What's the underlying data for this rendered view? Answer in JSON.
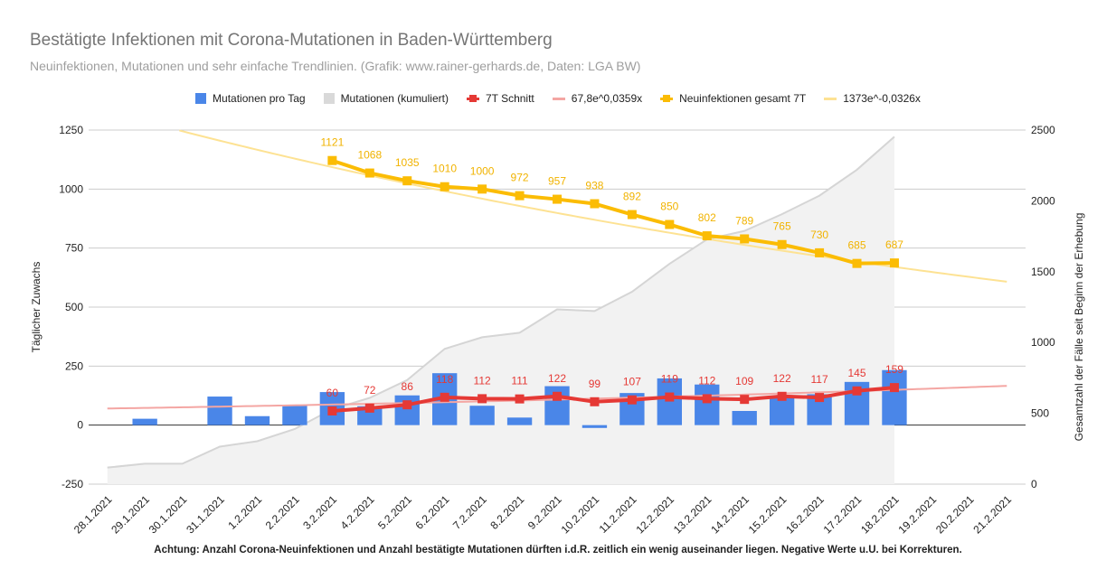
{
  "title": "Bestätigte Infektionen mit Corona-Mutationen in Baden-Württemberg",
  "subtitle": "Neuinfektionen, Mutationen und sehr einfache Trendlinien.  (Grafik: www.rainer-gerhards.de, Daten: LGA BW)",
  "footnote": "Achtung: Anzahl Corona-Neuinfektionen und Anzahl bestätigte Mutationen dürften i.d.R. zeitlich ein wenig auseinander liegen. Negative Werte u.U. bei Korrekturen.",
  "legend": [
    {
      "label": "Mutationen pro Tag",
      "color": "#4a86e8",
      "kind": "box"
    },
    {
      "label": "Mutationen (kumuliert)",
      "color": "#d9d9d9",
      "kind": "box"
    },
    {
      "label": "7T Schnitt",
      "color": "#e53935",
      "kind": "line-dot"
    },
    {
      "label": "67,8e^0,0359x",
      "color": "#f4a6a3",
      "kind": "line"
    },
    {
      "label": "Neuinfektionen gesamt 7T",
      "color": "#fbbc04",
      "kind": "line-dot"
    },
    {
      "label": "1373e^-0,0326x",
      "color": "#fde293",
      "kind": "line"
    }
  ],
  "chart_data": {
    "type": "bar",
    "categories": [
      "28.1.2021",
      "29.1.2021",
      "30.1.2021",
      "31.1.2021",
      "1.2.2021",
      "2.2.2021",
      "3.2.2021",
      "4.2.2021",
      "5.2.2021",
      "6.2.2021",
      "7.2.2021",
      "8.2.2021",
      "9.2.2021",
      "10.2.2021",
      "11.2.2021",
      "12.2.2021",
      "13.2.2021",
      "14.2.2021",
      "15.2.2021",
      "16.2.2021",
      "17.2.2021",
      "18.2.2021",
      "19.2.2021",
      "20.2.2021",
      "21.2.2021"
    ],
    "ylabel": "Täglicher Zuwachs",
    "y2label": "Gesamtzahl der Fälle seit Beginn der Erhebung",
    "ylim": [
      -250,
      1250
    ],
    "y2lim": [
      0,
      2500
    ],
    "yticks": [
      "1250",
      "1000",
      "750",
      "500",
      "250",
      "0",
      "-250"
    ],
    "y2ticks": [
      "2500",
      "2000",
      "1500",
      "1000",
      "500",
      "0"
    ],
    "series": [
      {
        "name": "Mutationen pro Tag",
        "axis": "left",
        "type": "bar",
        "color": "#4a86e8",
        "values": [
          null,
          27,
          null,
          121,
          38,
          86,
          140,
          80,
          126,
          220,
          82,
          32,
          165,
          -12,
          136,
          198,
          172,
          60,
          118,
          131,
          183,
          233,
          null,
          null,
          null
        ]
      },
      {
        "name": "Mutationen (kumuliert)",
        "axis": "right",
        "type": "area",
        "color": "#d9d9d9",
        "values": [
          117,
          144,
          144,
          265,
          303,
          389,
          529,
          609,
          735,
          955,
          1037,
          1069,
          1234,
          1222,
          1358,
          1556,
          1728,
          1788,
          1906,
          2037,
          2220,
          2453,
          null,
          null,
          null
        ]
      },
      {
        "name": "7T Schnitt",
        "axis": "left",
        "type": "line",
        "color": "#e53935",
        "values": [
          null,
          null,
          null,
          null,
          null,
          null,
          60,
          72,
          86,
          118,
          112,
          111,
          122,
          99,
          107,
          119,
          112,
          109,
          122,
          117,
          145,
          159,
          null,
          null,
          null
        ]
      },
      {
        "name": "67,8e^0,0359x",
        "axis": "left",
        "type": "trend",
        "color": "#f4a6a3",
        "a": 67.8,
        "b": 0.0359
      },
      {
        "name": "Neuinfektionen gesamt 7T",
        "axis": "left",
        "type": "line",
        "color": "#fbbc04",
        "values": [
          null,
          null,
          null,
          null,
          null,
          null,
          1121,
          1068,
          1035,
          1010,
          1000,
          972,
          957,
          938,
          892,
          850,
          802,
          789,
          765,
          730,
          685,
          687,
          null,
          null,
          null
        ]
      },
      {
        "name": "1373e^-0,0326x",
        "axis": "left",
        "type": "trend",
        "color": "#fde293",
        "a": 1373,
        "b": -0.0326
      }
    ]
  }
}
